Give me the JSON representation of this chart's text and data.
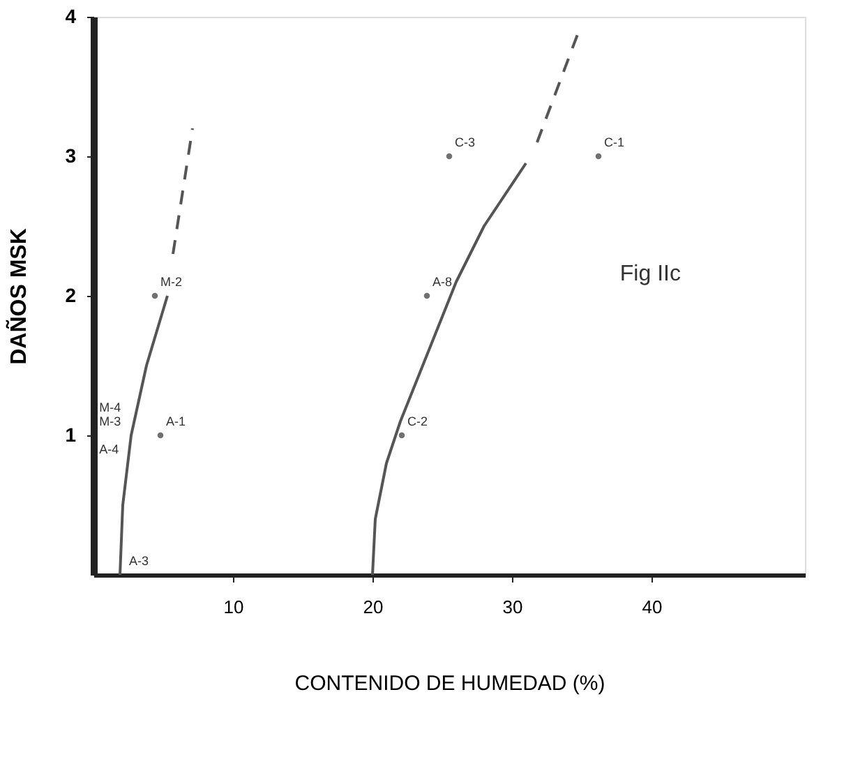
{
  "chart_data": {
    "type": "line",
    "xlabel": "CONTENIDO DE HUMEDAD (%)",
    "ylabel": "DAÑOS MSK",
    "xlim": [
      0,
      51
    ],
    "ylim": [
      0,
      4
    ],
    "xticks": [
      10,
      20,
      30,
      40
    ],
    "yticks": [
      1,
      2,
      3,
      4
    ],
    "grid": false,
    "series": [
      {
        "line_style": "solid",
        "color": "#555555",
        "x": [
          1.9,
          2.1,
          2.7,
          3.8,
          5.3
        ],
        "values": [
          0,
          0.5,
          1.0,
          1.5,
          2.0
        ]
      },
      {
        "line_style": "dashed",
        "color": "#555555",
        "x": [
          5.7,
          6.4,
          7.1
        ],
        "values": [
          2.3,
          2.75,
          3.2
        ]
      },
      {
        "line_style": "solid",
        "color": "#555555",
        "x": [
          20,
          20.2,
          21,
          22,
          24,
          26,
          28,
          31
        ],
        "values": [
          0,
          0.4,
          0.8,
          1.1,
          1.6,
          2.1,
          2.5,
          2.95
        ]
      },
      {
        "line_style": "dashed",
        "color": "#555555",
        "x": [
          31.8,
          33.3,
          34.8
        ],
        "values": [
          3.1,
          3.5,
          3.9
        ]
      },
      {
        "type": "scatter",
        "marker": "circle",
        "color": "#333333",
        "x": [
          4.4,
          4.8,
          22.1,
          23.9,
          25.5,
          36.2
        ],
        "values": [
          2.0,
          1.0,
          1.0,
          2.0,
          3.0,
          3.0
        ]
      }
    ],
    "annotations": [
      {
        "text": "M-2",
        "x": 4.4,
        "y": 2.0
      },
      "M-4",
      "M-3",
      "A-4",
      {
        "text": "A-1",
        "x": 4.8,
        "y": 1.0
      },
      "A-3",
      {
        "text": "C-3",
        "x": 25.5,
        "y": 3.0
      },
      {
        "text": "A-8",
        "x": 23.9,
        "y": 2.0
      },
      {
        "text": "C-2",
        "x": 22.1,
        "y": 1.0
      },
      {
        "text": "C-1",
        "x": 36.2,
        "y": 3.0
      },
      "Fig IIc"
    ]
  }
}
